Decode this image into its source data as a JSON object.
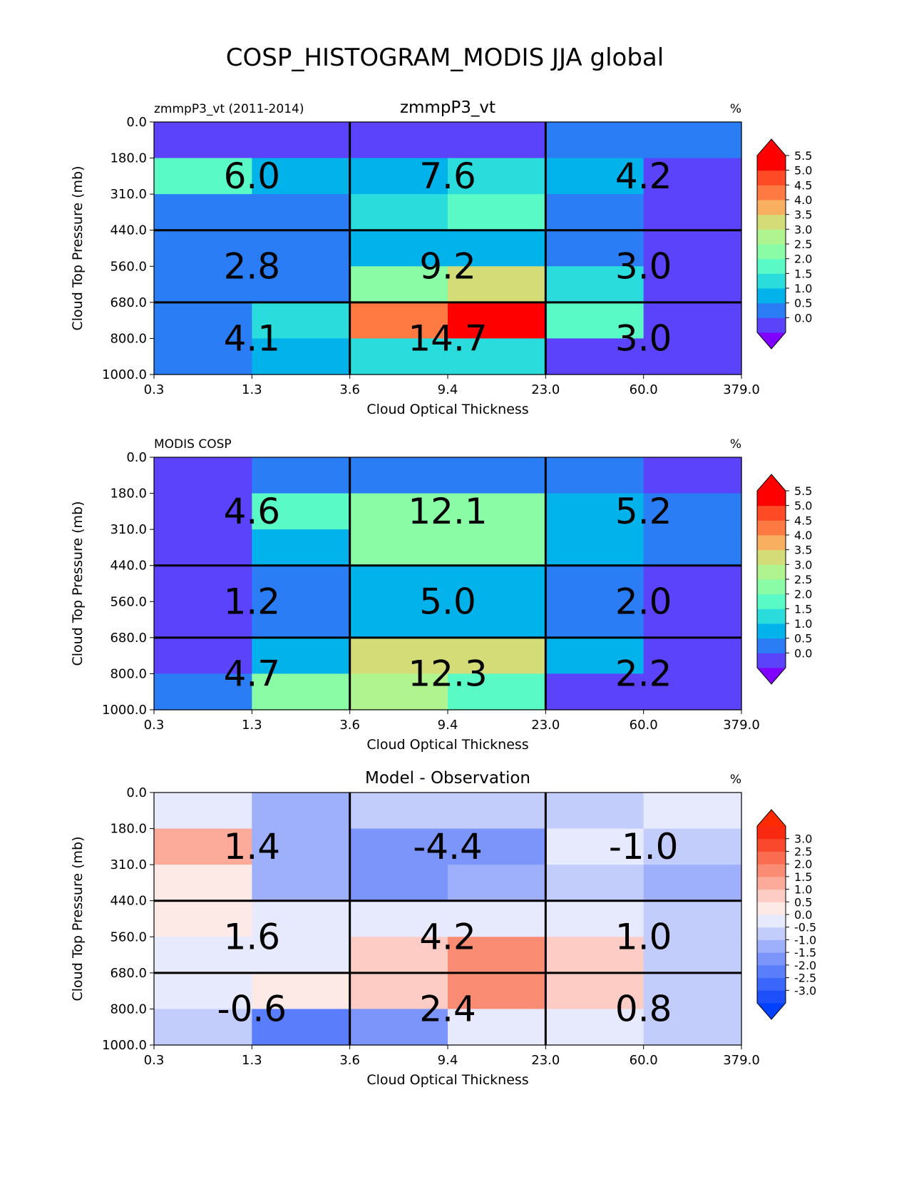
{
  "figure": {
    "title": "COSP_HISTOGRAM_MODIS JJA global"
  },
  "chart_data": [
    {
      "type": "heatmap",
      "left_label": "zmmpP3_vt (2011-2014)",
      "title": "zmmpP3_vt",
      "unit": "%",
      "xlabel": "Cloud Optical Thickness",
      "ylabel": "Cloud Top Pressure (mb)",
      "x_ticks": [
        "0.3",
        "1.3",
        "3.6",
        "9.4",
        "23.0",
        "60.0",
        "379.0"
      ],
      "y_ticks": [
        "0.0",
        "180.0",
        "310.0",
        "440.0",
        "560.0",
        "680.0",
        "800.0",
        "1000.0"
      ],
      "cells": [
        [
          0.0,
          0.0,
          0.0,
          0.0,
          0.5,
          0.5
        ],
        [
          2.0,
          1.0,
          1.0,
          1.5,
          1.0,
          0.0
        ],
        [
          0.5,
          0.5,
          1.5,
          2.0,
          0.5,
          0.0
        ],
        [
          0.5,
          0.5,
          1.0,
          1.0,
          0.5,
          0.0
        ],
        [
          0.5,
          0.5,
          2.5,
          3.5,
          1.5,
          0.0
        ],
        [
          0.5,
          1.5,
          4.5,
          5.5,
          2.0,
          0.0
        ],
        [
          0.5,
          1.0,
          1.5,
          1.5,
          0.0,
          0.0
        ]
      ],
      "group_labels": [
        [
          "6.0",
          "7.6",
          "4.2"
        ],
        [
          "2.8",
          "9.2",
          "3.0"
        ],
        [
          "4.1",
          "14.7",
          "3.0"
        ]
      ],
      "colorbar": {
        "ticks": [
          "0.0",
          "0.5",
          "1.0",
          "1.5",
          "2.0",
          "2.5",
          "3.0",
          "3.5",
          "4.0",
          "4.5",
          "5.0",
          "5.5"
        ],
        "colors": [
          "#5a43fb",
          "#2a7df4",
          "#02b2eb",
          "#2adcdc",
          "#5afac6",
          "#8afca6",
          "#b0f490",
          "#d4dc78",
          "#f8b060",
          "#ff7a42",
          "#ff4a26",
          "#ff0000"
        ],
        "under": "#8000ff",
        "over": "#ff0000"
      }
    },
    {
      "type": "heatmap",
      "left_label": "MODIS COSP",
      "title": "",
      "unit": "%",
      "xlabel": "Cloud Optical Thickness",
      "ylabel": "Cloud Top Pressure (mb)",
      "x_ticks": [
        "0.3",
        "1.3",
        "3.6",
        "9.4",
        "23.0",
        "60.0",
        "379.0"
      ],
      "y_ticks": [
        "0.0",
        "180.0",
        "310.0",
        "440.0",
        "560.0",
        "680.0",
        "800.0",
        "1000.0"
      ],
      "cells": [
        [
          0.0,
          0.5,
          0.5,
          0.5,
          0.5,
          0.0
        ],
        [
          0.0,
          2.0,
          2.5,
          2.5,
          1.0,
          0.5
        ],
        [
          0.0,
          1.0,
          2.5,
          2.5,
          1.0,
          0.5
        ],
        [
          0.0,
          0.5,
          1.0,
          1.0,
          0.5,
          0.0
        ],
        [
          0.0,
          0.5,
          1.0,
          1.0,
          0.5,
          0.0
        ],
        [
          0.0,
          1.0,
          3.5,
          3.5,
          1.0,
          0.0
        ],
        [
          0.5,
          2.5,
          3.0,
          2.0,
          0.0,
          0.0
        ]
      ],
      "group_labels": [
        [
          "4.6",
          "12.1",
          "5.2"
        ],
        [
          "1.2",
          "5.0",
          "2.0"
        ],
        [
          "4.7",
          "12.3",
          "2.2"
        ]
      ],
      "colorbar": {
        "ticks": [
          "0.0",
          "0.5",
          "1.0",
          "1.5",
          "2.0",
          "2.5",
          "3.0",
          "3.5",
          "4.0",
          "4.5",
          "5.0",
          "5.5"
        ],
        "colors": [
          "#5a43fb",
          "#2a7df4",
          "#02b2eb",
          "#2adcdc",
          "#5afac6",
          "#8afca6",
          "#b0f490",
          "#d4dc78",
          "#f8b060",
          "#ff7a42",
          "#ff4a26",
          "#ff0000"
        ],
        "under": "#8000ff",
        "over": "#ff0000"
      }
    },
    {
      "type": "heatmap",
      "left_label": "",
      "title": "Model - Observation",
      "unit": "%",
      "xlabel": "Cloud Optical Thickness",
      "ylabel": "Cloud Top Pressure (mb)",
      "x_ticks": [
        "0.3",
        "1.3",
        "3.6",
        "9.4",
        "23.0",
        "60.0",
        "379.0"
      ],
      "y_ticks": [
        "0.0",
        "180.0",
        "310.0",
        "440.0",
        "560.0",
        "680.0",
        "800.0",
        "1000.0"
      ],
      "cells": [
        [
          0.2,
          -0.7,
          -0.2,
          -0.2,
          -0.2,
          0.2
        ],
        [
          1.8,
          -0.7,
          -1.3,
          -1.3,
          0.2,
          -0.2
        ],
        [
          0.7,
          -0.7,
          -1.3,
          -0.7,
          -0.2,
          -0.7
        ],
        [
          0.7,
          0.2,
          0.2,
          0.2,
          0.2,
          -0.2
        ],
        [
          0.2,
          0.2,
          1.3,
          2.2,
          1.3,
          -0.2
        ],
        [
          0.2,
          0.7,
          1.3,
          2.2,
          1.3,
          -0.2
        ],
        [
          -0.2,
          -1.8,
          -1.3,
          0.2,
          0.2,
          -0.2
        ]
      ],
      "group_labels": [
        [
          "1.4",
          "-4.4",
          "-1.0"
        ],
        [
          "1.6",
          "4.2",
          "1.0"
        ],
        [
          "-0.6",
          "2.4",
          "0.8"
        ]
      ],
      "colorbar": {
        "ticks": [
          "-3.0",
          "-2.5",
          "-2.0",
          "-1.5",
          "-1.0",
          "-0.5",
          "0.0",
          "0.5",
          "1.0",
          "1.5",
          "2.0",
          "2.5",
          "3.0"
        ],
        "colors": [
          "#1e50fa",
          "#3a66fb",
          "#5a7efb",
          "#7b95fb",
          "#9eb0fb",
          "#c2cdfc",
          "#e7eafd",
          "#fdeae7",
          "#fdccc4",
          "#fcab9b",
          "#fb8c74",
          "#fa6c50",
          "#f9482c",
          "#f92810"
        ],
        "under": "#0040ff",
        "over": "#ff2a00"
      }
    }
  ]
}
